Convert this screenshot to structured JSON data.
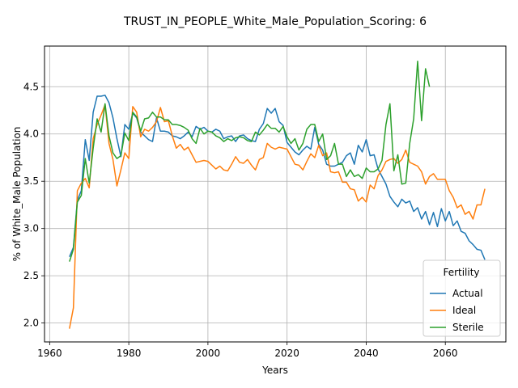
{
  "chart_data": {
    "type": "line",
    "title": "TRUST_IN_PEOPLE_White_Male_Population_Scoring: 6",
    "xlabel": "Years",
    "ylabel": "% of White_Male Population",
    "xlim": [
      1958.7,
      2075.3
    ],
    "ylim": [
      1.8,
      4.93
    ],
    "xticks": [
      1960,
      1980,
      2000,
      2020,
      2040,
      2060
    ],
    "yticks": [
      2.0,
      2.5,
      3.0,
      3.5,
      4.0,
      4.5
    ],
    "ytick_labels": [
      "2.0",
      "2.5",
      "3.0",
      "3.5",
      "4.0",
      "4.5"
    ],
    "grid": true,
    "legend": {
      "title": "Fertility",
      "placement": "lower-right"
    },
    "series": [
      {
        "name": "Actual",
        "color": "#1f77b4",
        "x": [
          1965,
          1966,
          1967,
          1968,
          1969,
          1970,
          1971,
          1972,
          1973,
          1974,
          1975,
          1976,
          1977,
          1978,
          1979,
          1980,
          1981,
          1982,
          1983,
          1984,
          1985,
          1986,
          1987,
          1988,
          1989,
          1990,
          1991,
          1992,
          1993,
          1994,
          1995,
          1996,
          1997,
          1998,
          1999,
          2000,
          2001,
          2002,
          2003,
          2004,
          2005,
          2006,
          2007,
          2008,
          2009,
          2010,
          2011,
          2012,
          2013,
          2014,
          2015,
          2016,
          2017,
          2018,
          2019,
          2020,
          2021,
          2022,
          2023,
          2024,
          2025,
          2026,
          2027,
          2028,
          2029,
          2030,
          2031,
          2032,
          2033,
          2034,
          2035,
          2036,
          2037,
          2038,
          2039,
          2040,
          2041,
          2042,
          2043,
          2044,
          2045,
          2046,
          2047,
          2048,
          2049,
          2050,
          2051,
          2052,
          2053,
          2054,
          2055,
          2056,
          2057,
          2058,
          2059,
          2060,
          2061,
          2062,
          2063,
          2064,
          2065,
          2066,
          2067,
          2068,
          2069,
          2070
        ],
        "values": [
          2.7,
          2.8,
          3.3,
          3.4,
          3.94,
          3.72,
          4.23,
          4.4,
          4.4,
          4.41,
          4.33,
          4.17,
          3.95,
          3.76,
          4.1,
          4.05,
          4.22,
          4.17,
          4.02,
          3.98,
          3.94,
          3.92,
          4.17,
          4.03,
          4.03,
          4.02,
          3.98,
          3.97,
          3.95,
          3.98,
          4.02,
          3.97,
          4.08,
          4.05,
          4.07,
          4.03,
          4.02,
          4.05,
          4.03,
          3.95,
          3.97,
          3.98,
          3.92,
          3.98,
          3.99,
          3.95,
          3.93,
          3.92,
          4.05,
          4.11,
          4.27,
          4.22,
          4.27,
          4.13,
          4.09,
          3.91,
          3.86,
          3.81,
          3.78,
          3.83,
          3.87,
          3.84,
          4.07,
          3.89,
          3.83,
          3.68,
          3.66,
          3.66,
          3.68,
          3.7,
          3.77,
          3.8,
          3.68,
          3.88,
          3.81,
          3.94,
          3.77,
          3.78,
          3.63,
          3.55,
          3.47,
          3.34,
          3.28,
          3.23,
          3.31,
          3.27,
          3.29,
          3.18,
          3.22,
          3.1,
          3.18,
          3.04,
          3.17,
          3.02,
          3.21,
          3.08,
          3.18,
          3.03,
          3.08,
          2.97,
          2.95,
          2.87,
          2.83,
          2.78,
          2.77,
          2.67
        ]
      },
      {
        "name": "Ideal",
        "color": "#ff7f0e",
        "x": [
          1965,
          1966,
          1967,
          1968,
          1969,
          1970,
          1971,
          1972,
          1973,
          1974,
          1975,
          1976,
          1977,
          1978,
          1979,
          1980,
          1981,
          1982,
          1983,
          1984,
          1985,
          1986,
          1987,
          1988,
          1989,
          1990,
          1991,
          1992,
          1993,
          1994,
          1995,
          1996,
          1997,
          1998,
          1999,
          2000,
          2001,
          2002,
          2003,
          2004,
          2005,
          2006,
          2007,
          2008,
          2009,
          2010,
          2011,
          2012,
          2013,
          2014,
          2015,
          2016,
          2017,
          2018,
          2019,
          2020,
          2021,
          2022,
          2023,
          2024,
          2025,
          2026,
          2027,
          2028,
          2029,
          2030,
          2031,
          2032,
          2033,
          2034,
          2035,
          2036,
          2037,
          2038,
          2039,
          2040,
          2041,
          2042,
          2043,
          2044,
          2045,
          2046,
          2047,
          2048,
          2049,
          2050,
          2051,
          2052,
          2053,
          2054,
          2055,
          2056,
          2057,
          2058,
          2059,
          2060,
          2061,
          2062,
          2063,
          2064,
          2065,
          2066,
          2067,
          2068,
          2069,
          2070
        ],
        "values": [
          1.94,
          2.16,
          3.4,
          3.48,
          3.53,
          3.43,
          3.95,
          4.1,
          4.2,
          4.31,
          3.9,
          3.73,
          3.45,
          3.62,
          3.8,
          3.74,
          4.29,
          4.23,
          3.97,
          4.05,
          4.03,
          4.07,
          4.13,
          4.28,
          4.13,
          4.14,
          3.98,
          3.85,
          3.89,
          3.83,
          3.86,
          3.78,
          3.7,
          3.71,
          3.72,
          3.71,
          3.67,
          3.63,
          3.66,
          3.62,
          3.61,
          3.68,
          3.76,
          3.7,
          3.69,
          3.73,
          3.67,
          3.62,
          3.73,
          3.75,
          3.9,
          3.86,
          3.84,
          3.86,
          3.85,
          3.84,
          3.76,
          3.68,
          3.67,
          3.62,
          3.71,
          3.79,
          3.75,
          3.88,
          3.77,
          3.8,
          3.6,
          3.59,
          3.6,
          3.49,
          3.49,
          3.42,
          3.41,
          3.29,
          3.33,
          3.28,
          3.46,
          3.42,
          3.56,
          3.62,
          3.71,
          3.73,
          3.74,
          3.69,
          3.73,
          3.83,
          3.7,
          3.68,
          3.66,
          3.6,
          3.47,
          3.55,
          3.58,
          3.52,
          3.52,
          3.52,
          3.4,
          3.33,
          3.22,
          3.25,
          3.15,
          3.18,
          3.1,
          3.25,
          3.25,
          3.42
        ]
      },
      {
        "name": "Sterile",
        "color": "#2ca02c",
        "x": [
          1965,
          1966,
          1967,
          1968,
          1969,
          1970,
          1971,
          1972,
          1973,
          1974,
          1975,
          1976,
          1977,
          1978,
          1979,
          1980,
          1981,
          1982,
          1983,
          1984,
          1985,
          1986,
          1987,
          1988,
          1989,
          1990,
          1991,
          1992,
          1993,
          1994,
          1995,
          1996,
          1997,
          1998,
          1999,
          2000,
          2001,
          2002,
          2003,
          2004,
          2005,
          2006,
          2007,
          2008,
          2009,
          2010,
          2011,
          2012,
          2013,
          2014,
          2015,
          2016,
          2017,
          2018,
          2019,
          2020,
          2021,
          2022,
          2023,
          2024,
          2025,
          2026,
          2027,
          2028,
          2029,
          2030,
          2031,
          2032,
          2033,
          2034,
          2035,
          2036,
          2037,
          2038,
          2039,
          2040,
          2041,
          2042,
          2043,
          2044,
          2045,
          2046,
          2047,
          2048,
          2049,
          2050,
          2051,
          2052,
          2053,
          2054,
          2055,
          2056
        ],
        "values": [
          2.65,
          2.78,
          3.28,
          3.35,
          3.74,
          3.48,
          3.85,
          4.16,
          4.02,
          4.32,
          3.98,
          3.8,
          3.74,
          3.77,
          4.01,
          3.93,
          4.23,
          4.18,
          4.03,
          4.16,
          4.17,
          4.23,
          4.18,
          4.18,
          4.15,
          4.15,
          4.1,
          4.1,
          4.09,
          4.07,
          4.04,
          3.95,
          3.9,
          4.06,
          4.0,
          4.03,
          4.02,
          3.98,
          3.96,
          3.92,
          3.95,
          3.93,
          3.96,
          3.97,
          3.96,
          3.93,
          3.92,
          4.02,
          3.99,
          4.04,
          4.1,
          4.06,
          4.06,
          4.02,
          4.08,
          3.97,
          3.9,
          3.95,
          3.83,
          3.9,
          4.05,
          4.1,
          4.1,
          3.92,
          4.0,
          3.73,
          3.77,
          3.9,
          3.68,
          3.68,
          3.55,
          3.62,
          3.55,
          3.57,
          3.53,
          3.64,
          3.6,
          3.6,
          3.63,
          3.72,
          4.1,
          4.32,
          3.61,
          3.78,
          3.47,
          3.48,
          3.9,
          4.16,
          4.77,
          4.14,
          4.69,
          4.5
        ]
      }
    ]
  }
}
